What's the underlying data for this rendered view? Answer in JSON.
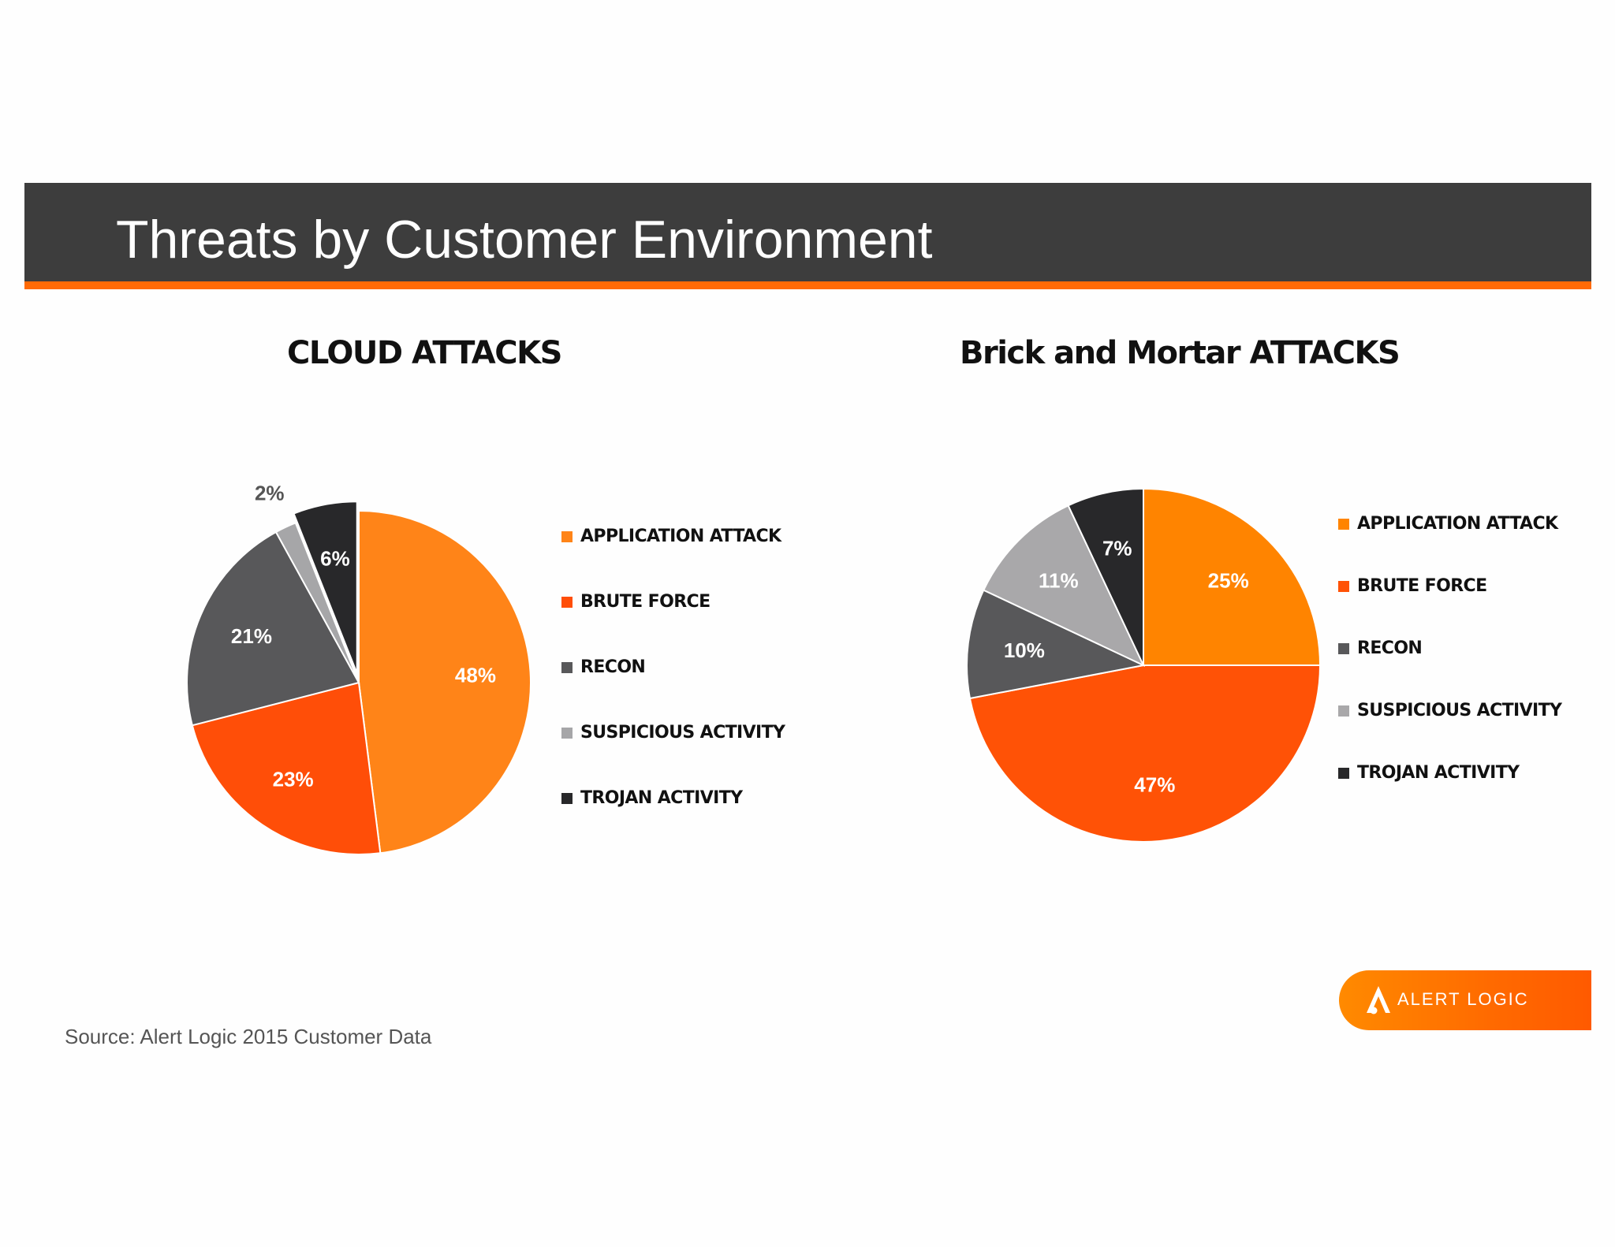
{
  "header": {
    "title": "Threats by Customer Environment"
  },
  "colors": {
    "title_bar": "#3d3d3d",
    "accent": "#ff6a06",
    "application_attack": "#ff8418",
    "brute_force": "#ff4e08",
    "recon": "#58585a",
    "suspicious_activity": "#a6a6a8",
    "trojan_activity": "#28282a"
  },
  "chart_data": [
    {
      "type": "pie",
      "title": "CLOUD ATTACKS",
      "categories": [
        "APPLICATION ATTACK",
        "BRUTE FORCE",
        "RECON",
        "SUSPICIOUS ACTIVITY",
        "TROJAN ACTIVITY"
      ],
      "values": [
        48,
        23,
        21,
        2,
        6
      ],
      "labels": [
        "48%",
        "23%",
        "21%",
        "2%",
        "6%"
      ],
      "colors": [
        "#ff8418",
        "#ff4e08",
        "#58585a",
        "#a6a6a8",
        "#28282a"
      ],
      "exploded": [
        "TROJAN ACTIVITY"
      ],
      "legend": "right"
    },
    {
      "type": "pie",
      "title": "Brick and Mortar ATTACKS",
      "categories": [
        "APPLICATION ATTACK",
        "BRUTE FORCE",
        "RECON",
        "SUSPICIOUS ACTIVITY",
        "TROJAN ACTIVITY"
      ],
      "values": [
        25,
        47,
        10,
        11,
        7
      ],
      "labels": [
        "25%",
        "47%",
        "10%",
        "11%",
        "7%"
      ],
      "colors": [
        "#ff8400",
        "#ff5206",
        "#58585a",
        "#a9a8aa",
        "#28282a"
      ],
      "exploded": [],
      "legend": "right"
    }
  ],
  "footer": {
    "source": "Source: Alert Logic 2015 Customer Data",
    "logo_text": "ALERT LOGIC",
    "logo_icon": "alert-logic-a-icon"
  }
}
